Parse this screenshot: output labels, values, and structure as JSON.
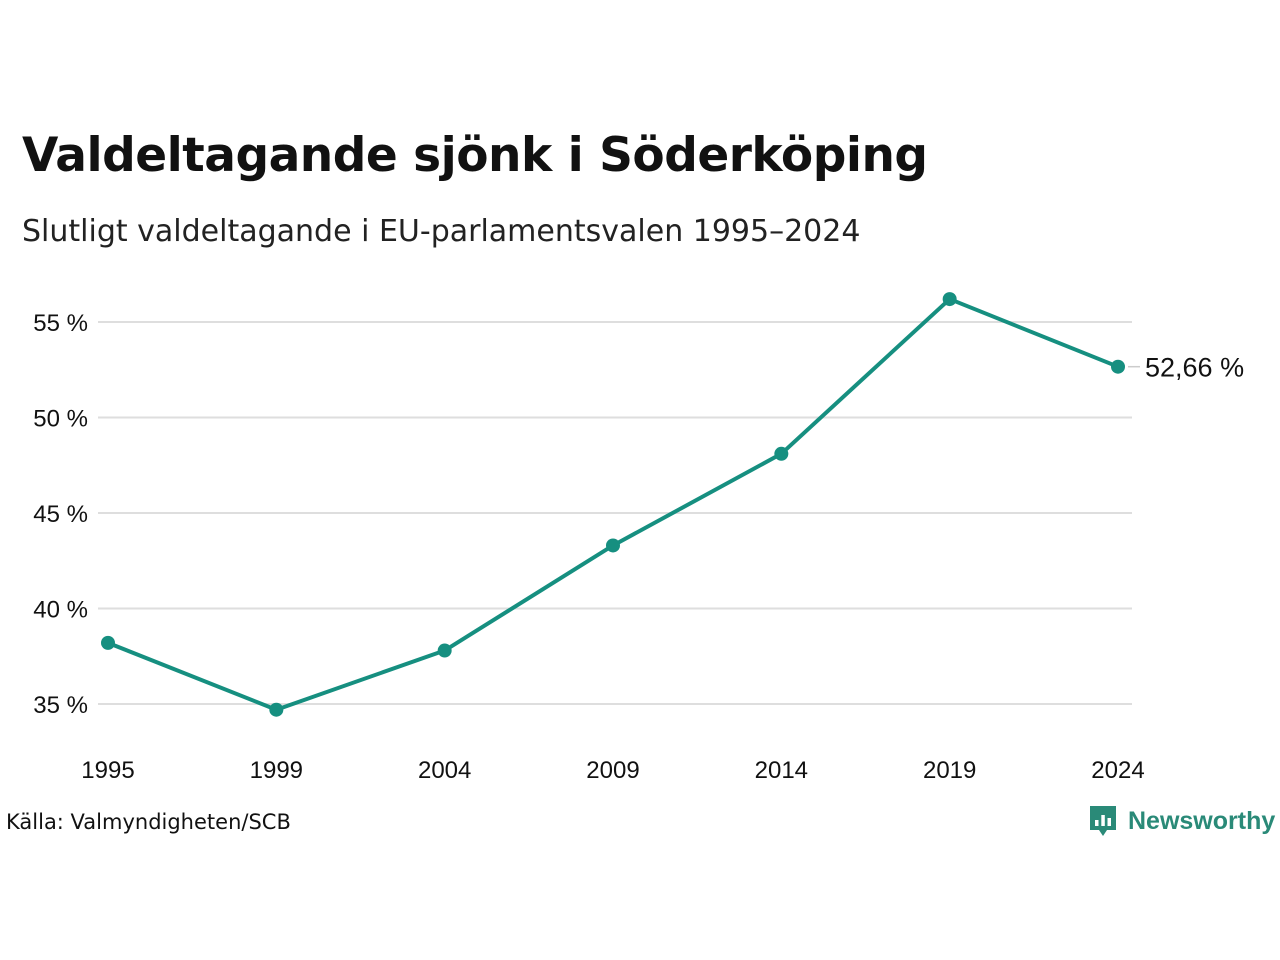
{
  "title": "Valdeltagande sjönk i Söderköping",
  "subtitle": "Slutligt valdeltagande i EU-parlamentsvalen 1995–2024",
  "source": "Källa: Valmyndigheten/SCB",
  "brand": {
    "name": "Newsworthy",
    "icon": "newsworthy-logo-icon",
    "color": "#2a8a78"
  },
  "colors": {
    "line": "#168f80",
    "grid": "#dedede",
    "text": "#111111"
  },
  "chart_data": {
    "type": "line",
    "title": "Valdeltagande sjönk i Söderköping",
    "subtitle": "Slutligt valdeltagande i EU-parlamentsvalen 1995–2024",
    "xlabel": "",
    "ylabel": "",
    "x": [
      "1995",
      "1999",
      "2004",
      "2009",
      "2014",
      "2019",
      "2024"
    ],
    "series": [
      {
        "values": [
          38.2,
          34.7,
          37.8,
          43.3,
          48.1,
          56.2,
          52.66
        ]
      }
    ],
    "ylim": [
      34,
      57
    ],
    "yticks": [
      35,
      40,
      45,
      50,
      55
    ],
    "ytick_labels": [
      "35 %",
      "40 %",
      "45 %",
      "50 %",
      "55 %"
    ],
    "end_label": "52,66 %",
    "grid": true,
    "legend": "none"
  }
}
